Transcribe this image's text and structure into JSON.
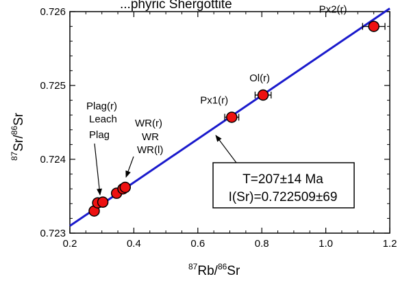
{
  "chart_data": {
    "type": "scatter",
    "title": "...phyric Shergottite",
    "xlabel_sup1": "87",
    "xlabel_main1": "Rb/",
    "xlabel_sup2": "86",
    "xlabel_main2": "Sr",
    "ylabel_sup1": "87",
    "ylabel_main1": "Sr/",
    "ylabel_sup2": "86",
    "ylabel_main2": "Sr",
    "xlim": [
      0.2,
      1.2
    ],
    "ylim": [
      0.723,
      0.726
    ],
    "x_ticks": [
      0.2,
      0.4,
      0.6,
      0.8,
      1.0,
      1.2
    ],
    "x_tick_labels": [
      "0.2",
      "0.4",
      "0.6",
      "0.8",
      "1.0",
      "1.2"
    ],
    "y_ticks": [
      0.723,
      0.724,
      0.725,
      0.726
    ],
    "y_tick_labels": [
      "0.723",
      "0.724",
      "0.725",
      "0.726"
    ],
    "grid": false,
    "isochron": {
      "intercept": 0.722509,
      "slope": 0.002945,
      "color": "#1a1acc"
    },
    "points": [
      {
        "x": 0.276,
        "y": 0.7233,
        "xerr": 0.008,
        "label": ""
      },
      {
        "x": 0.287,
        "y": 0.72341,
        "xerr": 0.009,
        "label": ""
      },
      {
        "x": 0.303,
        "y": 0.72342,
        "xerr": 0.009,
        "label": ""
      },
      {
        "x": 0.346,
        "y": 0.72354,
        "xerr": 0.012,
        "label": ""
      },
      {
        "x": 0.366,
        "y": 0.7236,
        "xerr": 0.013,
        "label": ""
      },
      {
        "x": 0.373,
        "y": 0.72362,
        "xerr": 0.013,
        "label": ""
      },
      {
        "x": 0.706,
        "y": 0.72457,
        "xerr": 0.022,
        "label": "Px1(r)"
      },
      {
        "x": 0.804,
        "y": 0.72487,
        "xerr": 0.025,
        "label": "Ol(r)"
      },
      {
        "x": 1.15,
        "y": 0.7258,
        "xerr": 0.035,
        "label": "Px2(r)"
      }
    ],
    "left_labels": [
      "Plag(r)",
      "Leach",
      "Plag"
    ],
    "wr_labels": [
      "WR(r)",
      "WR",
      "WR(l)"
    ],
    "point_fill": "#ee1111",
    "annotation_lines": [
      "T=207±14 Ma",
      "I(Sr)=0.722509±69"
    ]
  }
}
